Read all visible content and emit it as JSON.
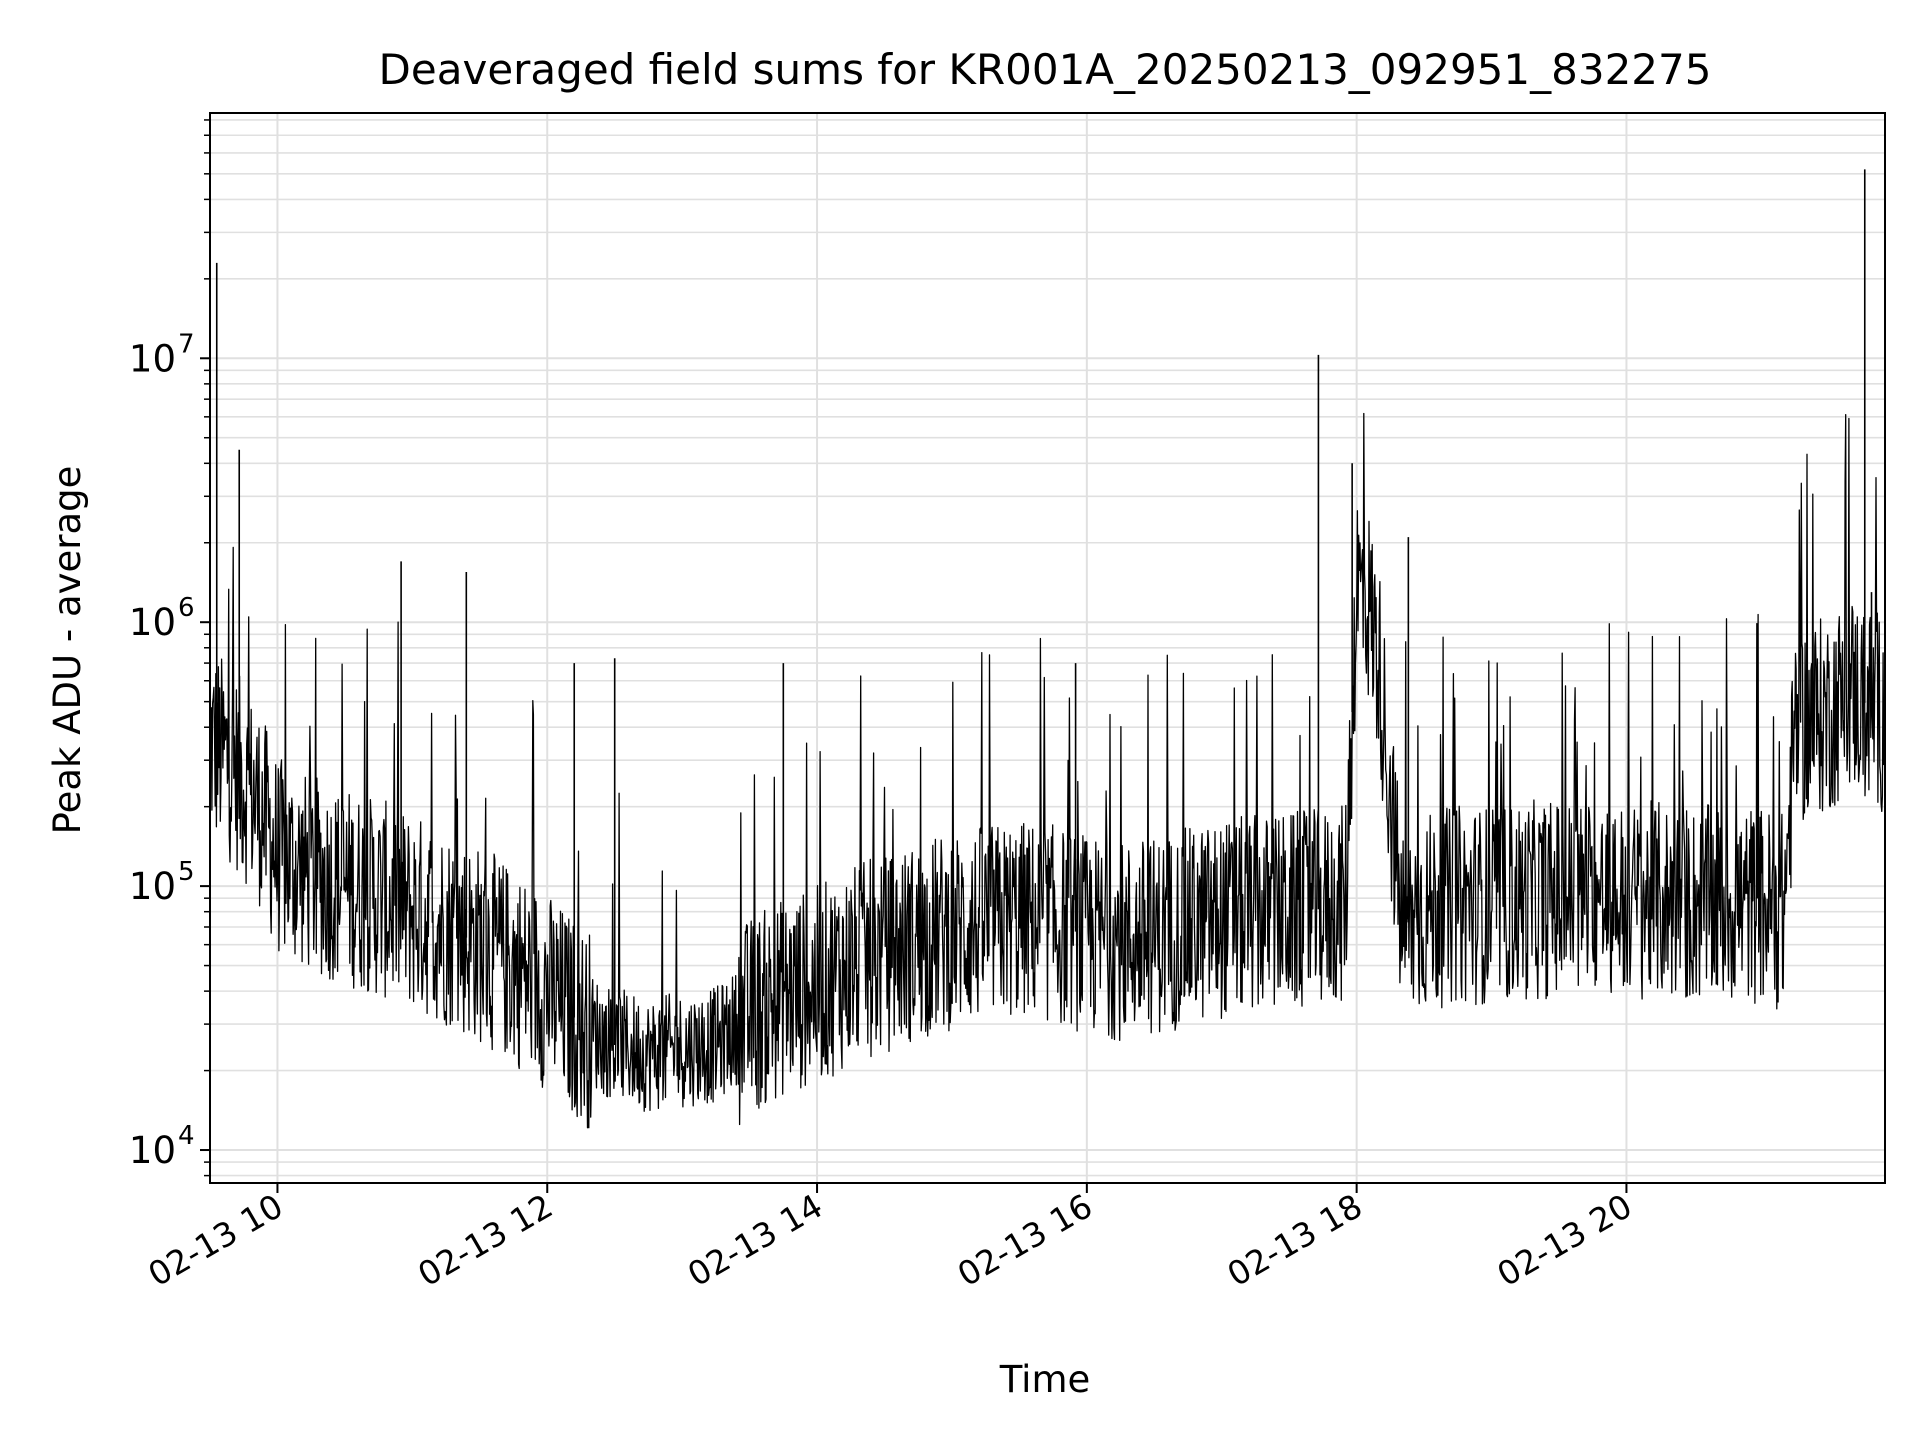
{
  "colors": {
    "line": "#000000",
    "grid": "#e0e0e0",
    "axes": "#000000",
    "background": "#ffffff"
  },
  "chart_data": {
    "type": "line",
    "title": "Deaveraged field sums for KR001A_20250213_092951_832275",
    "xlabel": "Time",
    "ylabel": "Peak ADU - average",
    "yscale": "log",
    "xlim": [
      "02-13 09:30",
      "02-13 21:55"
    ],
    "ylim": [
      7500,
      85000000
    ],
    "grid": true,
    "x_ticks": [
      "02-13 10",
      "02-13 12",
      "02-13 14",
      "02-13 16",
      "02-13 18",
      "02-13 20"
    ],
    "y_ticks": [
      {
        "base": "10",
        "exp": "4",
        "value": 10000
      },
      {
        "base": "10",
        "exp": "5",
        "value": 100000
      },
      {
        "base": "10",
        "exp": "6",
        "value": 1000000
      },
      {
        "base": "10",
        "exp": "7",
        "value": 10000000
      }
    ],
    "series": [
      {
        "name": "",
        "x": [
          "02-13 09:30",
          "02-13 09:38",
          "02-13 09:45",
          "02-13 09:52",
          "02-13 10:00",
          "02-13 10:15",
          "02-13 10:30",
          "02-13 10:45",
          "02-13 11:00",
          "02-13 11:15",
          "02-13 11:30",
          "02-13 11:45",
          "02-13 12:00",
          "02-13 12:15",
          "02-13 12:30",
          "02-13 12:45",
          "02-13 13:00",
          "02-13 13:15",
          "02-13 13:30",
          "02-13 13:45",
          "02-13 14:00",
          "02-13 14:15",
          "02-13 14:30",
          "02-13 14:45",
          "02-13 15:00",
          "02-13 15:15",
          "02-13 15:30",
          "02-13 15:45",
          "02-13 16:00",
          "02-13 16:15",
          "02-13 16:30",
          "02-13 16:45",
          "02-13 17:00",
          "02-13 17:15",
          "02-13 17:30",
          "02-13 17:45",
          "02-13 17:55",
          "02-13 18:00",
          "02-13 18:05",
          "02-13 18:10",
          "02-13 18:20",
          "02-13 18:30",
          "02-13 18:45",
          "02-13 19:00",
          "02-13 19:15",
          "02-13 19:30",
          "02-13 19:45",
          "02-13 20:00",
          "02-13 20:15",
          "02-13 20:30",
          "02-13 20:45",
          "02-13 21:00",
          "02-13 21:10",
          "02-13 21:15",
          "02-13 21:30",
          "02-13 21:40",
          "02-13 21:45",
          "02-13 21:55"
        ],
        "y": [
          350000,
          300000,
          250000,
          200000,
          130000,
          110000,
          100000,
          90000,
          80000,
          70000,
          60000,
          50000,
          40000,
          30000,
          25000,
          23000,
          24000,
          25000,
          32000,
          38000,
          42000,
          50000,
          55000,
          62000,
          68000,
          72000,
          75000,
          72000,
          65000,
          62000,
          65000,
          70000,
          75000,
          78000,
          80000,
          82000,
          85000,
          1400000,
          1200000,
          700000,
          70000,
          80000,
          85000,
          85000,
          88000,
          90000,
          90000,
          88000,
          88000,
          85000,
          85000,
          85000,
          80000,
          400000,
          450000,
          550000,
          500000,
          450000
        ],
        "spikes": [
          {
            "x": "02-13 09:33",
            "y": 23000000
          },
          {
            "x": "02-13 09:43",
            "y": 4500000
          },
          {
            "x": "02-13 10:55",
            "y": 1700000
          },
          {
            "x": "02-13 11:24",
            "y": 1550000
          },
          {
            "x": "02-13 12:12",
            "y": 700000
          },
          {
            "x": "02-13 12:30",
            "y": 730000
          },
          {
            "x": "02-13 13:45",
            "y": 700000
          },
          {
            "x": "02-13 15:55",
            "y": 700000
          },
          {
            "x": "02-13 17:43",
            "y": 10300000
          },
          {
            "x": "02-13 17:58",
            "y": 4000000
          },
          {
            "x": "02-13 18:23",
            "y": 2100000
          },
          {
            "x": "02-13 21:46",
            "y": 52000000
          },
          {
            "x": "02-13 21:49",
            "y": 1300000
          }
        ]
      }
    ]
  }
}
